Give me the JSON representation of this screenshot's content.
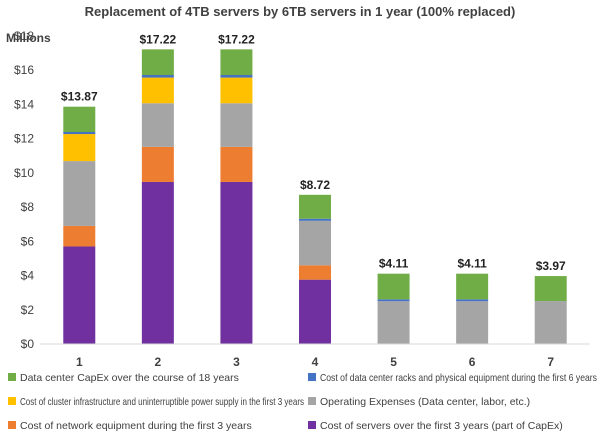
{
  "chart_data": {
    "type": "bar",
    "stacked": true,
    "title": "Replacement of 4TB servers by 6TB servers in 1 year (100% replaced)",
    "unit_label": "Millions",
    "categories": [
      "1",
      "2",
      "3",
      "4",
      "5",
      "6",
      "7"
    ],
    "ylim": [
      0,
      18
    ],
    "yticks": [
      0,
      2,
      4,
      6,
      8,
      10,
      12,
      14,
      16,
      18
    ],
    "ytick_labels": [
      "$0",
      "$2",
      "$4",
      "$6",
      "$8",
      "$10",
      "$12",
      "$14",
      "$16",
      "$18"
    ],
    "grid": false,
    "legend_position": "bottom",
    "totals": [
      13.87,
      17.22,
      17.22,
      8.72,
      4.11,
      4.11,
      3.97
    ],
    "total_labels": [
      "$13.87",
      "$17.22",
      "$17.22",
      "$8.72",
      "$4.11",
      "$4.11",
      "$3.97"
    ],
    "series": [
      {
        "name": "Cost of servers over the first 3 years (part of CapEx)",
        "color": "#7030A0",
        "values": [
          5.7,
          9.47,
          9.47,
          3.76,
          0,
          0,
          0
        ]
      },
      {
        "name": "Cost of network equipment during the first 3 years",
        "color": "#ED7D31",
        "values": [
          1.2,
          2.05,
          2.05,
          0.84,
          0,
          0,
          0
        ]
      },
      {
        "name": "Operating Expenses (Data center, labor, etc.)",
        "color": "#A5A5A5",
        "values": [
          3.79,
          2.55,
          2.55,
          2.6,
          2.5,
          2.5,
          2.51
        ]
      },
      {
        "name": "Cost of cluster infrastructure and uninterruptible power supply in the first 3 years",
        "color": "#FFC000",
        "values": [
          1.58,
          1.5,
          1.5,
          0,
          0,
          0,
          0
        ]
      },
      {
        "name": "Cost of data center racks and physical equipment during the first 6 years",
        "color": "#4472C4",
        "values": [
          0.12,
          0.15,
          0.15,
          0.12,
          0.11,
          0.11,
          0
        ]
      },
      {
        "name": "Data center CapEx over the course of 18 years",
        "color": "#70AD47",
        "values": [
          1.48,
          1.5,
          1.5,
          1.4,
          1.5,
          1.5,
          1.46
        ]
      }
    ],
    "legend_order": [
      5,
      4,
      3,
      2,
      1,
      0
    ]
  }
}
